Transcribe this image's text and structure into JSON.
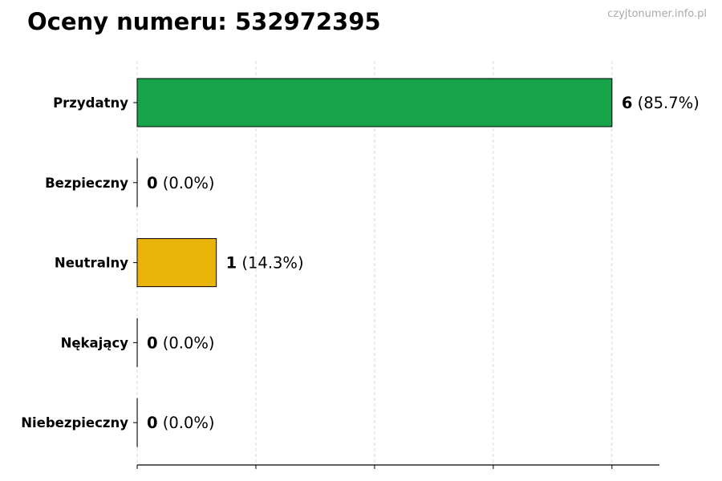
{
  "title": "Oceny numeru: 532972395",
  "watermark": "czyjtonumer.info.pl",
  "chart_data": {
    "type": "bar",
    "orientation": "horizontal",
    "title": "Oceny numeru: 532972395",
    "categories": [
      "Przydatny",
      "Bezpieczny",
      "Neutralny",
      "Nękający",
      "Niebezpieczny"
    ],
    "values": [
      6,
      0,
      1,
      0,
      0
    ],
    "labels": [
      "(85.7%)",
      "(0.0%)",
      "(14.3%)",
      "(0.0%)",
      "(0.0%)"
    ],
    "colors": [
      "#16a34a",
      "#16a34a",
      "#eab308",
      "#dc2626",
      "#dc2626"
    ],
    "xlim": [
      0,
      6.6
    ],
    "xticks": [
      0,
      1.5,
      3,
      4.5,
      6
    ],
    "grid": "x, dashed",
    "xlabel": "",
    "ylabel": ""
  }
}
